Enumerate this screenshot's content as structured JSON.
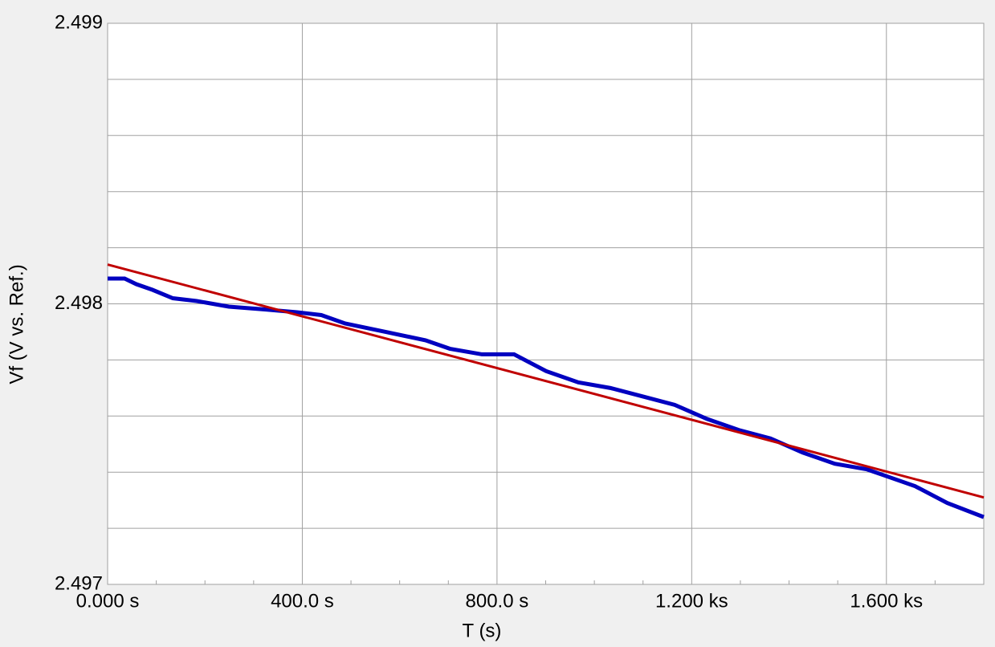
{
  "chart_data": {
    "type": "line",
    "x_label": "T (s)",
    "y_label": "Vf (V vs. Ref.)",
    "xlim": [
      0,
      1800
    ],
    "ylim": [
      2.497,
      2.499
    ],
    "xticks": [
      {
        "value": 0,
        "label": "0.000 s"
      },
      {
        "value": 400,
        "label": "400.0 s"
      },
      {
        "value": 800,
        "label": "800.0 s"
      },
      {
        "value": 1200,
        "label": "1.200 ks"
      },
      {
        "value": 1600,
        "label": "1.600 ks"
      }
    ],
    "xticks_minor": [
      100,
      200,
      300,
      500,
      600,
      700,
      900,
      1000,
      1100,
      1300,
      1400,
      1500,
      1700
    ],
    "yticks": [
      2.497,
      2.498,
      2.499
    ],
    "yticks_minor": [
      2.4972,
      2.4974,
      2.4976,
      2.4978,
      2.4982,
      2.4984,
      2.4986,
      2.4988
    ],
    "grid": true,
    "series": [
      {
        "color": "#0000c0",
        "width": 5,
        "x": [
          0,
          35,
          59,
          92,
          134,
          183,
          249,
          323,
          389,
          439,
          488,
          571,
          653,
          703,
          769,
          835,
          901,
          967,
          1033,
          1099,
          1165,
          1231,
          1297,
          1362,
          1428,
          1494,
          1560,
          1593,
          1659,
          1725,
          1800
        ],
        "values": [
          2.49809,
          2.49809,
          2.49807,
          2.49805,
          2.49802,
          2.49801,
          2.49799,
          2.49798,
          2.49797,
          2.49796,
          2.49793,
          2.4979,
          2.49787,
          2.49784,
          2.49782,
          2.49782,
          2.49776,
          2.49772,
          2.4977,
          2.49767,
          2.49764,
          2.49759,
          2.49755,
          2.49752,
          2.49747,
          2.49743,
          2.49741,
          2.49739,
          2.49735,
          2.49729,
          2.49724
        ]
      },
      {
        "color": "#c00000",
        "width": 3,
        "x": [
          0,
          1800
        ],
        "values": [
          2.49814,
          2.49731
        ]
      }
    ]
  }
}
